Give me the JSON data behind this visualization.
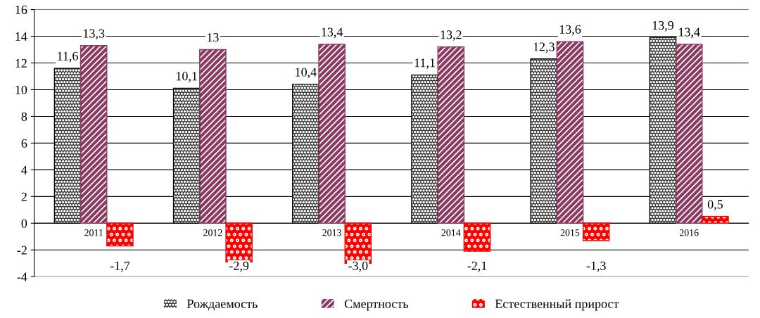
{
  "chart_data": {
    "type": "bar",
    "categories": [
      "2011",
      "2012",
      "2013",
      "2014",
      "2015",
      "2016"
    ],
    "series": [
      {
        "name": "Рождаемость",
        "color": "#333333",
        "values": [
          11.6,
          10.1,
          10.4,
          11.1,
          12.3,
          13.9
        ],
        "value_labels": [
          "11,6",
          "10,1",
          "10,4",
          "11,1",
          "12,3",
          "13,9"
        ]
      },
      {
        "name": "Смертность",
        "color": "#8b3a62",
        "values": [
          13.3,
          13,
          13.4,
          13.2,
          13.6,
          13.4
        ],
        "value_labels": [
          "13,3",
          "13",
          "13,4",
          "13,2",
          "13,6",
          "13,4"
        ]
      },
      {
        "name": "Естественный прирост",
        "color": "#ff0000",
        "values": [
          -1.7,
          -2.9,
          -3.0,
          -2.1,
          -1.3,
          0.5
        ],
        "value_labels": [
          "-1,7",
          "-2,9",
          "-3,0",
          "-2,1",
          "-1,3",
          "0,5"
        ]
      }
    ],
    "ylim": [
      -4,
      16
    ],
    "yticks": [
      -4,
      -2,
      0,
      2,
      4,
      6,
      8,
      10,
      12,
      14,
      16
    ],
    "grid": "y",
    "legend": "bottom"
  }
}
